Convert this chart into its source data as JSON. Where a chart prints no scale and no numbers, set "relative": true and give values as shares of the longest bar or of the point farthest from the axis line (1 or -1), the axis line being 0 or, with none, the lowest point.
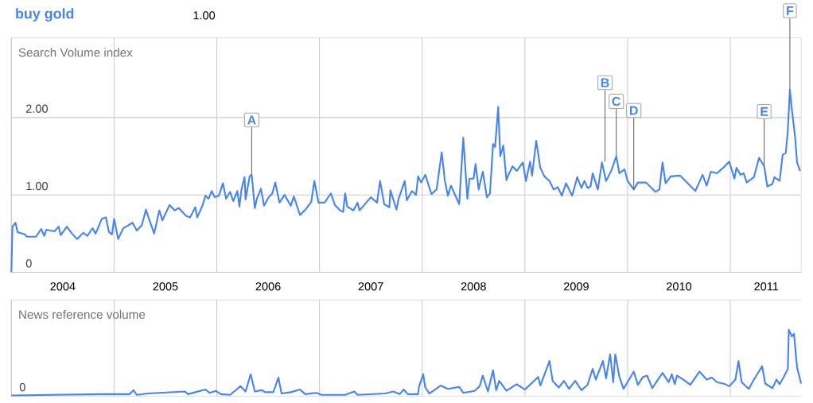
{
  "chart_data": [
    {
      "type": "line",
      "ylabel": "Search Volume index",
      "legend": "top left",
      "grid": true,
      "annotations": [
        "1.00",
        {
          "text": "A",
          "x": 2006.34,
          "y": 1.26
        },
        {
          "text": "B",
          "x": 2009.78,
          "y": 1.43
        },
        {
          "text": "C",
          "x": 2009.89,
          "y": 1.5
        },
        {
          "text": "D",
          "x": 2010.06,
          "y": 1.07
        },
        {
          "text": "E",
          "x": 2011.33,
          "y": 1.37
        },
        {
          "text": "F",
          "x": 2011.58,
          "y": 2.36
        }
      ],
      "xlim": [
        2004,
        2011.69
      ],
      "xticks": [
        {
          "value": 2004,
          "label": null
        },
        {
          "value": 2005,
          "label": null
        },
        {
          "value": 2006,
          "label": null
        },
        {
          "value": 2007,
          "label": null
        },
        {
          "value": 2008,
          "label": null
        },
        {
          "value": 2009,
          "label": null
        },
        {
          "value": 2010,
          "label": null
        },
        {
          "value": 2011,
          "label": null
        },
        {
          "value": 2004.5,
          "label": "2004"
        },
        {
          "value": 2005.5,
          "label": "2005"
        },
        {
          "value": 2006.5,
          "label": "2006"
        },
        {
          "value": 2007.5,
          "label": "2007"
        },
        {
          "value": 2008.5,
          "label": "2008"
        },
        {
          "value": 2009.5,
          "label": "2009"
        },
        {
          "value": 2010.5,
          "label": "2010"
        },
        {
          "value": 2011.35,
          "label": "2011"
        }
      ],
      "ylim": [
        0,
        3.03
      ],
      "yticks": [
        0,
        {
          "value": 1,
          "label": "1.00"
        },
        {
          "value": 2,
          "label": "2.00"
        }
      ],
      "series": [
        {
          "name": "buy gold",
          "color": "#4684ee",
          "x": [
            2004.0,
            2004.01,
            2004.04,
            2004.06,
            2004.13,
            2004.15,
            2004.24,
            2004.29,
            2004.32,
            2004.34,
            2004.42,
            2004.46,
            2004.48,
            2004.54,
            2004.59,
            2004.64,
            2004.7,
            2004.74,
            2004.79,
            2004.82,
            2004.88,
            2004.92,
            2004.95,
            2004.98,
            2005.0,
            2005.04,
            2005.09,
            2005.18,
            2005.22,
            2005.27,
            2005.31,
            2005.34,
            2005.39,
            2005.44,
            2005.47,
            2005.54,
            2005.59,
            2005.63,
            2005.7,
            2005.74,
            2005.79,
            2005.81,
            2005.86,
            2005.89,
            2005.92,
            2005.95,
            2005.98,
            2006.02,
            2006.06,
            2006.09,
            2006.13,
            2006.16,
            2006.2,
            2006.22,
            2006.24,
            2006.27,
            2006.28,
            2006.32,
            2006.34,
            2006.37,
            2006.39,
            2006.43,
            2006.46,
            2006.5,
            2006.54,
            2006.57,
            2006.61,
            2006.66,
            2006.72,
            2006.75,
            2006.81,
            2006.87,
            2006.92,
            2006.95,
            2006.99,
            2007.05,
            2007.11,
            2007.15,
            2007.2,
            2007.23,
            2007.25,
            2007.27,
            2007.33,
            2007.37,
            2007.39,
            2007.5,
            2007.56,
            2007.59,
            2007.63,
            2007.68,
            2007.69,
            2007.75,
            2007.77,
            2007.83,
            2007.85,
            2007.9,
            2007.94,
            2007.96,
            2007.99,
            2008.03,
            2008.09,
            2008.14,
            2008.19,
            2008.22,
            2008.25,
            2008.28,
            2008.36,
            2008.4,
            2008.44,
            2008.46,
            2008.5,
            2008.52,
            2008.55,
            2008.59,
            2008.63,
            2008.66,
            2008.69,
            2008.71,
            2008.74,
            2008.76,
            2008.79,
            2008.82,
            2008.84,
            2008.88,
            2008.92,
            2008.98,
            2009.01,
            2009.05,
            2009.07,
            2009.11,
            2009.15,
            2009.19,
            2009.24,
            2009.28,
            2009.32,
            2009.36,
            2009.4,
            2009.46,
            2009.51,
            2009.55,
            2009.58,
            2009.61,
            2009.64,
            2009.66,
            2009.71,
            2009.75,
            2009.79,
            2009.84,
            2009.89,
            2009.92,
            2009.97,
            2010.0,
            2010.06,
            2010.1,
            2010.18,
            2010.27,
            2010.31,
            2010.34,
            2010.37,
            2010.42,
            2010.51,
            2010.66,
            2010.73,
            2010.77,
            2010.81,
            2010.87,
            2010.93,
            2010.99,
            2011.04,
            2011.06,
            2011.1,
            2011.13,
            2011.16,
            2011.23,
            2011.28,
            2011.33,
            2011.36,
            2011.41,
            2011.43,
            2011.48,
            2011.51,
            2011.54,
            2011.56,
            2011.58,
            2011.6,
            2011.63,
            2011.65,
            2011.68
          ],
          "values": [
            0,
            0.59,
            0.64,
            0.52,
            0.49,
            0.46,
            0.46,
            0.56,
            0.47,
            0.55,
            0.53,
            0.59,
            0.48,
            0.59,
            0.5,
            0.43,
            0.51,
            0.47,
            0.57,
            0.5,
            0.69,
            0.71,
            0.52,
            0.49,
            0.69,
            0.43,
            0.57,
            0.64,
            0.54,
            0.61,
            0.81,
            0.69,
            0.5,
            0.8,
            0.67,
            0.87,
            0.8,
            0.83,
            0.73,
            0.71,
            0.84,
            0.71,
            0.86,
            0.99,
            0.95,
            1.05,
            0.97,
            0.99,
            1.15,
            0.95,
            1.04,
            0.92,
            1.05,
            0.85,
            1.07,
            1.23,
            0.94,
            1.24,
            1.26,
            0.83,
            0.95,
            1.08,
            0.86,
            0.96,
            1.02,
            1.16,
            0.9,
            1.0,
            0.86,
            0.98,
            0.74,
            0.82,
            0.91,
            1.18,
            0.9,
            0.9,
            1.02,
            0.87,
            0.8,
            0.78,
            1.02,
            0.85,
            0.8,
            0.9,
            0.8,
            0.97,
            0.9,
            1.18,
            0.88,
            0.84,
            1.06,
            0.81,
            0.95,
            1.18,
            0.93,
            1.05,
            1.0,
            1.24,
            1.16,
            1.26,
            1.01,
            1.07,
            1.55,
            1.19,
            0.99,
            1.12,
            0.88,
            1.74,
            0.95,
            1.21,
            1.21,
            1.4,
            1.07,
            1.3,
            0.97,
            1.02,
            1.66,
            1.62,
            2.14,
            1.5,
            1.64,
            1.19,
            1.26,
            1.37,
            1.31,
            1.42,
            1.18,
            1.43,
            1.25,
            1.7,
            1.35,
            1.24,
            1.18,
            1.07,
            1.1,
            0.99,
            1.15,
            0.99,
            1.23,
            1.09,
            1.18,
            1.09,
            1.11,
            1.28,
            1.07,
            1.42,
            1.18,
            1.31,
            1.5,
            1.28,
            1.33,
            1.18,
            1.07,
            1.16,
            1.16,
            1.04,
            1.07,
            1.42,
            1.15,
            1.24,
            1.25,
            1.05,
            1.26,
            1.12,
            1.3,
            1.28,
            1.35,
            1.43,
            1.21,
            1.35,
            1.26,
            1.28,
            1.16,
            1.23,
            1.48,
            1.37,
            1.11,
            1.14,
            1.23,
            1.18,
            1.52,
            1.54,
            1.83,
            2.36,
            2.1,
            1.76,
            1.42,
            1.31
          ]
        }
      ]
    },
    {
      "type": "line",
      "ylabel": "News reference volume",
      "relative": true,
      "grid": "x",
      "tick_labels": false,
      "annotations": [
        "0"
      ],
      "xlim": [
        2004,
        2011.69
      ],
      "xticks": [
        2004,
        2005,
        2006,
        2007,
        2008,
        2009,
        2010,
        2011
      ],
      "series": [
        {
          "color": "#4684ee",
          "x": [
            2004.0,
            2004.87,
            2005.15,
            2005.19,
            2005.22,
            2005.33,
            2005.69,
            2005.72,
            2005.89,
            2005.93,
            2005.99,
            2006.04,
            2006.13,
            2006.23,
            2006.28,
            2006.33,
            2006.37,
            2006.44,
            2006.47,
            2006.55,
            2006.6,
            2006.63,
            2006.72,
            2006.81,
            2006.86,
            2006.97,
            2007.02,
            2007.25,
            2007.34,
            2007.37,
            2007.64,
            2007.72,
            2007.78,
            2007.82,
            2007.86,
            2007.93,
            2007.96,
            2007.97,
            2008.01,
            2008.03,
            2008.07,
            2008.18,
            2008.25,
            2008.36,
            2008.4,
            2008.51,
            2008.56,
            2008.59,
            2008.64,
            2008.69,
            2008.72,
            2008.75,
            2008.82,
            2008.92,
            2009.0,
            2009.13,
            2009.15,
            2009.24,
            2009.27,
            2009.33,
            2009.38,
            2009.43,
            2009.49,
            2009.55,
            2009.61,
            2009.66,
            2009.69,
            2009.76,
            2009.79,
            2009.83,
            2009.86,
            2009.88,
            2009.92,
            2009.96,
            2010.06,
            2010.1,
            2010.15,
            2010.19,
            2010.24,
            2010.34,
            2010.4,
            2010.43,
            2010.46,
            2010.48,
            2010.56,
            2010.61,
            2010.7,
            2010.77,
            2010.82,
            2010.87,
            2010.95,
            2010.99,
            2011.05,
            2011.08,
            2011.11,
            2011.18,
            2011.23,
            2011.31,
            2011.34,
            2011.41,
            2011.45,
            2011.48,
            2011.52,
            2011.56,
            2011.57,
            2011.6,
            2011.62,
            2011.65,
            2011.69
          ],
          "values": [
            0.01,
            0.03,
            0.03,
            0.09,
            0.02,
            0.04,
            0.07,
            0.03,
            0.1,
            0.05,
            0.08,
            0.03,
            0.02,
            0.15,
            0.07,
            0.33,
            0.07,
            0.09,
            0.06,
            0.06,
            0.28,
            0.04,
            0.06,
            0.1,
            0.03,
            0.05,
            0.02,
            0.02,
            0.07,
            0.02,
            0.04,
            0.07,
            0.03,
            0.1,
            0.03,
            0.03,
            0.03,
            0.15,
            0.33,
            0.13,
            0.04,
            0.16,
            0.11,
            0.14,
            0.05,
            0.08,
            0.15,
            0.31,
            0.07,
            0.39,
            0.09,
            0.23,
            0.08,
            0.18,
            0.1,
            0.29,
            0.16,
            0.53,
            0.23,
            0.13,
            0.23,
            0.11,
            0.23,
            0.09,
            0.17,
            0.41,
            0.25,
            0.53,
            0.27,
            0.63,
            0.21,
            0.63,
            0.29,
            0.11,
            0.37,
            0.17,
            0.29,
            0.31,
            0.12,
            0.35,
            0.21,
            0.33,
            0.18,
            0.31,
            0.23,
            0.17,
            0.37,
            0.25,
            0.28,
            0.21,
            0.18,
            0.15,
            0.25,
            0.53,
            0.21,
            0.11,
            0.25,
            0.45,
            0.19,
            0.12,
            0.25,
            0.18,
            0.29,
            0.41,
            1.0,
            0.9,
            0.94,
            0.43,
            0.19
          ]
        }
      ]
    }
  ]
}
